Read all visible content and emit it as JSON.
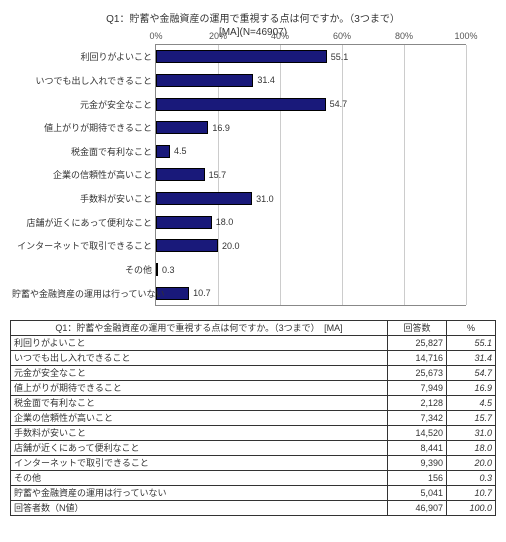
{
  "chart": {
    "type": "bar",
    "title_line1": "Q1：貯蓄や金融資産の運用で重視する点は何ですか。（3つまで）",
    "title_line2": "[MA](N=46907)",
    "title_fontsize": 10,
    "bar_color": "#19197A",
    "bar_border": "#000000",
    "grid_color": "#cccccc",
    "axis_color": "#888888",
    "label_fontsize": 9,
    "xlim": [
      0,
      100
    ],
    "xtick_step": 20,
    "xtick_suffix": "%",
    "categories": [
      "利回りがよいこと",
      "いつでも出し入れできること",
      "元金が安全なこと",
      "値上がりが期待できること",
      "税金面で有利なこと",
      "企業の信頼性が高いこと",
      "手数料が安いこと",
      "店舗が近くにあって便利なこと",
      "インターネットで取引できること",
      "その他",
      "貯蓄や金融資産の運用は行っていない"
    ],
    "values": [
      55.1,
      31.4,
      54.7,
      16.9,
      4.5,
      15.7,
      31.0,
      18.0,
      20.0,
      0.3,
      10.7
    ]
  },
  "table": {
    "header_q": "Q1：貯蓄や金融資産の運用で重視する点は何ですか。（3つまで）　[MA]",
    "col_count": "回答数",
    "col_pct": "%",
    "rows": [
      {
        "cat": "利回りがよいこと",
        "count": "25,827",
        "pct": "55.1"
      },
      {
        "cat": "いつでも出し入れできること",
        "count": "14,716",
        "pct": "31.4"
      },
      {
        "cat": "元金が安全なこと",
        "count": "25,673",
        "pct": "54.7"
      },
      {
        "cat": "値上がりが期待できること",
        "count": "7,949",
        "pct": "16.9"
      },
      {
        "cat": "税金面で有利なこと",
        "count": "2,128",
        "pct": "4.5"
      },
      {
        "cat": "企業の信頼性が高いこと",
        "count": "7,342",
        "pct": "15.7"
      },
      {
        "cat": "手数料が安いこと",
        "count": "14,520",
        "pct": "31.0"
      },
      {
        "cat": "店舗が近くにあって便利なこと",
        "count": "8,441",
        "pct": "18.0"
      },
      {
        "cat": "インターネットで取引できること",
        "count": "9,390",
        "pct": "20.0"
      },
      {
        "cat": "その他",
        "count": "156",
        "pct": "0.3"
      },
      {
        "cat": "貯蓄や金融資産の運用は行っていない",
        "count": "5,041",
        "pct": "10.7"
      }
    ],
    "footer": {
      "cat": "回答者数（N値）",
      "count": "46,907",
      "pct": "100.0"
    }
  }
}
